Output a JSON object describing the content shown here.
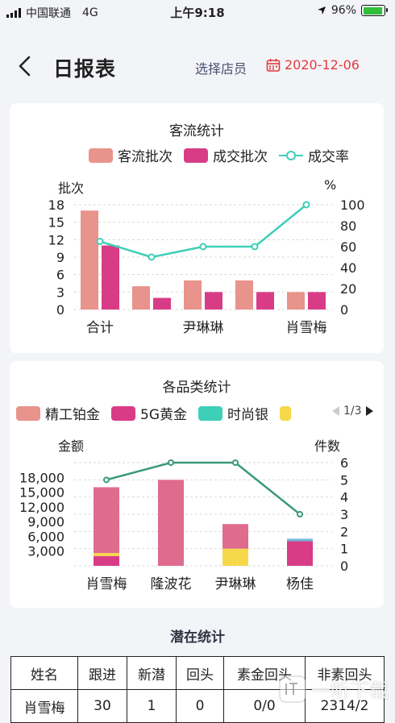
{
  "status_bar": {
    "carrier": "中国联通",
    "network": "4G",
    "time": "上午9:18",
    "battery": "96%",
    "battery_level": 0.96
  },
  "nav": {
    "title": "日报表",
    "staff_select": "选择店员",
    "date": "2020-12-06"
  },
  "colors": {
    "pink": "#e8938c",
    "magenta": "#d93c87",
    "teal": "#3ecfb8",
    "yellow": "#f5d94a",
    "green": "#3a9a76",
    "date_red": "#e23b3b"
  },
  "traffic_chart": {
    "title": "客流统计",
    "legend": [
      "客流批次",
      "成交批次",
      "成交率"
    ],
    "y_left_label": "批次",
    "y_right_label": "%",
    "y_left_ticks": [
      "0",
      "3",
      "6",
      "9",
      "12",
      "15",
      "18"
    ],
    "y_right_ticks": [
      "0",
      "20",
      "40",
      "60",
      "80",
      "100"
    ],
    "x_labels": [
      "合计",
      "尹琳琳",
      "肖雪梅"
    ]
  },
  "category_chart": {
    "title": "各品类统计",
    "legend": [
      "精工铂金",
      "5G黄金",
      "时尚银"
    ],
    "pager": "1/3",
    "y_left_label": "金额",
    "y_right_label": "件数",
    "y_left_ticks": [
      "3,000",
      "6,000",
      "9,000",
      "12,000",
      "15,000",
      "18,000"
    ],
    "y_right_ticks": [
      "0",
      "1",
      "2",
      "3",
      "4",
      "5",
      "6"
    ],
    "x_labels": [
      "肖雪梅",
      "隆波花",
      "尹琳琳",
      "杨佳"
    ]
  },
  "chart_data": [
    {
      "type": "bar",
      "title": "客流统计",
      "ylabel": "批次",
      "y2label": "%",
      "categories": [
        "合计",
        "",
        "尹琳琳",
        "",
        "肖雪梅"
      ],
      "ylim": [
        0,
        18
      ],
      "y2lim": [
        0,
        100
      ],
      "series": [
        {
          "name": "客流批次",
          "type": "bar",
          "values": [
            17,
            4,
            5,
            5,
            3
          ]
        },
        {
          "name": "成交批次",
          "type": "bar",
          "values": [
            11,
            2,
            3,
            3,
            3
          ]
        },
        {
          "name": "成交率",
          "type": "line",
          "axis": "right",
          "values": [
            65,
            50,
            60,
            60,
            100
          ]
        }
      ]
    },
    {
      "type": "bar",
      "title": "各品类统计",
      "ylabel": "金额",
      "y2label": "件数",
      "categories": [
        "肖雪梅",
        "隆波花",
        "尹琳琳",
        "杨佳"
      ],
      "ylim": [
        0,
        21000
      ],
      "y2lim": [
        0,
        6
      ],
      "stacked": true,
      "series": [
        {
          "name": "5G黄金",
          "type": "bar",
          "values": [
            2000,
            0,
            0,
            5000
          ]
        },
        {
          "name": "时尚银",
          "type": "bar",
          "values": [
            0,
            0,
            0,
            500
          ]
        },
        {
          "name": "",
          "type": "bar",
          "values": [
            600,
            0,
            3500,
            0
          ]
        },
        {
          "name": "精工铂金",
          "type": "bar",
          "values": [
            13400,
            17500,
            5000,
            0
          ]
        },
        {
          "name": "件数",
          "type": "line",
          "axis": "right",
          "values": [
            5,
            6,
            6,
            3
          ]
        }
      ]
    }
  ],
  "potential": {
    "title": "潜在统计",
    "headers": [
      "姓名",
      "跟进",
      "新潜",
      "回头",
      "素金回头",
      "非素回头"
    ],
    "rows": [
      [
        "肖雪梅",
        "30",
        "1",
        "0",
        "0/0",
        "2314/2"
      ]
    ]
  },
  "watermark": "一听下载"
}
